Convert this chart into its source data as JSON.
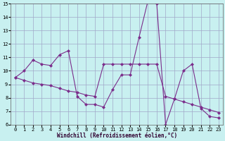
{
  "line1_x": [
    0,
    1,
    2,
    3,
    4,
    5,
    6,
    7,
    8,
    9,
    10,
    11,
    12,
    13,
    14,
    15,
    16,
    17,
    18,
    19,
    20,
    21,
    22,
    23
  ],
  "line1_y": [
    9.5,
    10.0,
    10.8,
    10.5,
    10.4,
    11.2,
    11.5,
    8.1,
    7.5,
    7.5,
    7.3,
    8.6,
    9.7,
    9.7,
    12.5,
    15.2,
    15.0,
    6.0,
    7.9,
    10.0,
    10.5,
    7.2,
    6.6,
    6.5
  ],
  "line2_x": [
    0,
    1,
    2,
    3,
    4,
    5,
    6,
    7,
    8,
    9,
    10,
    11,
    12,
    13,
    14,
    15,
    16,
    17,
    18,
    19,
    20,
    21,
    22,
    23
  ],
  "line2_y": [
    9.5,
    9.3,
    9.1,
    9.0,
    8.9,
    8.7,
    8.5,
    8.4,
    8.2,
    8.1,
    10.5,
    10.5,
    10.5,
    10.5,
    10.5,
    10.5,
    10.5,
    8.1,
    7.9,
    7.7,
    7.5,
    7.3,
    7.1,
    6.9
  ],
  "line_color": "#7b2d8b",
  "bg_color": "#c8f0f0",
  "grid_color": "#a0a8c8",
  "xlabel": "Windchill (Refroidissement éolien,°C)",
  "ylim": [
    6,
    15
  ],
  "xlim": [
    -0.5,
    23.5
  ],
  "yticks": [
    6,
    7,
    8,
    9,
    10,
    11,
    12,
    13,
    14,
    15
  ],
  "xticks": [
    0,
    1,
    2,
    3,
    4,
    5,
    6,
    7,
    8,
    9,
    10,
    11,
    12,
    13,
    14,
    15,
    16,
    17,
    18,
    19,
    20,
    21,
    22,
    23
  ],
  "tick_fontsize": 5,
  "xlabel_fontsize": 5.5,
  "marker": "D",
  "markersize": 2
}
